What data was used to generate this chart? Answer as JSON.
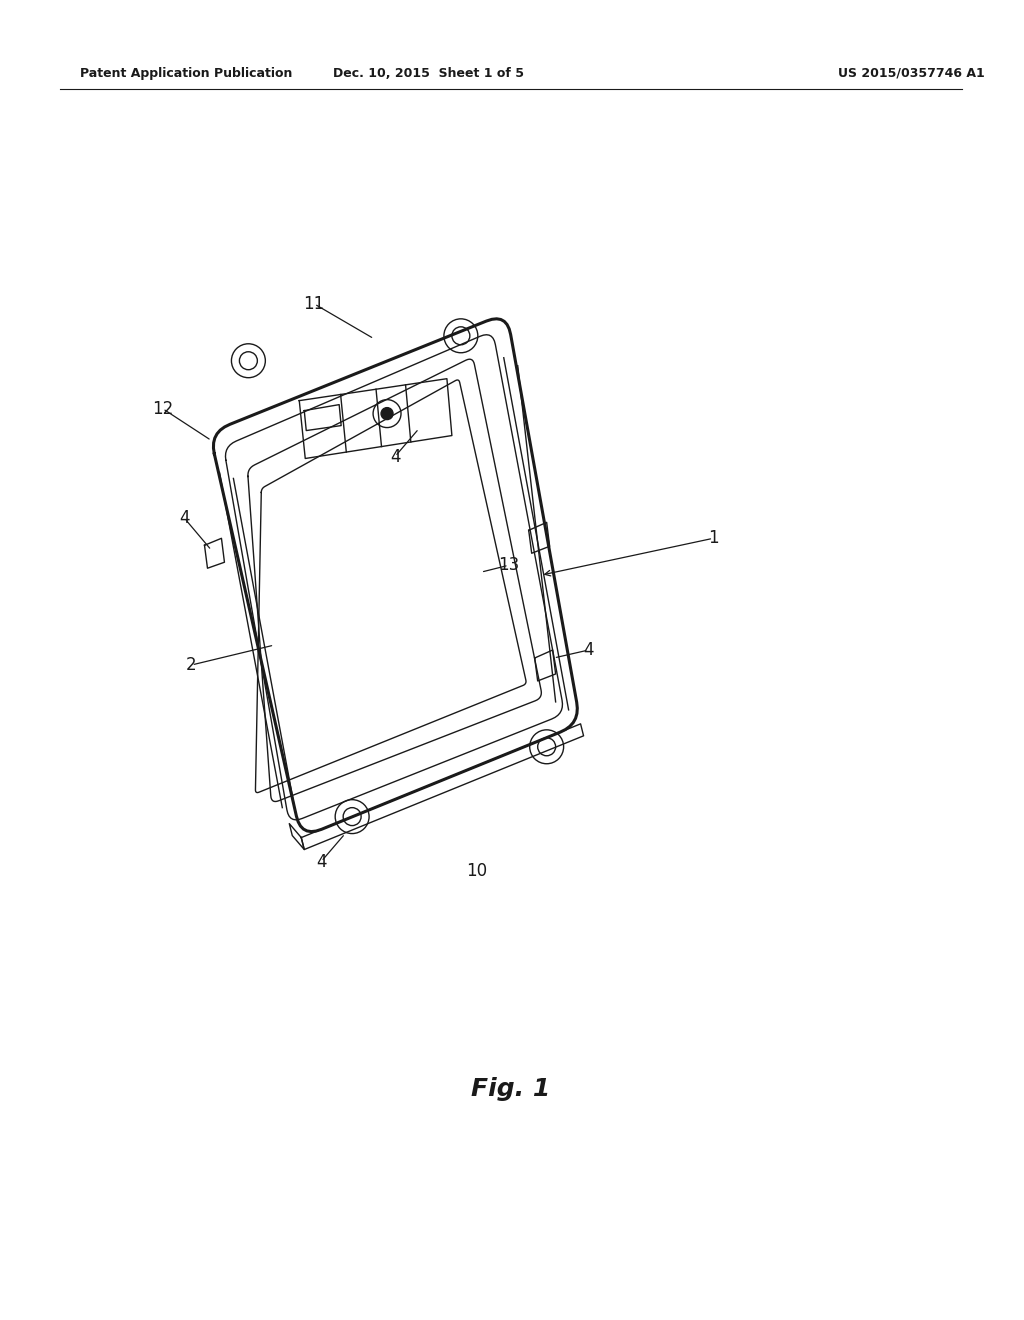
{
  "background_color": "#ffffff",
  "line_color": "#1a1a1a",
  "header_left": "Patent Application Publication",
  "header_mid": "Dec. 10, 2015  Sheet 1 of 5",
  "header_right": "US 2015/0357746 A1",
  "fig_label": "Fig. 1"
}
